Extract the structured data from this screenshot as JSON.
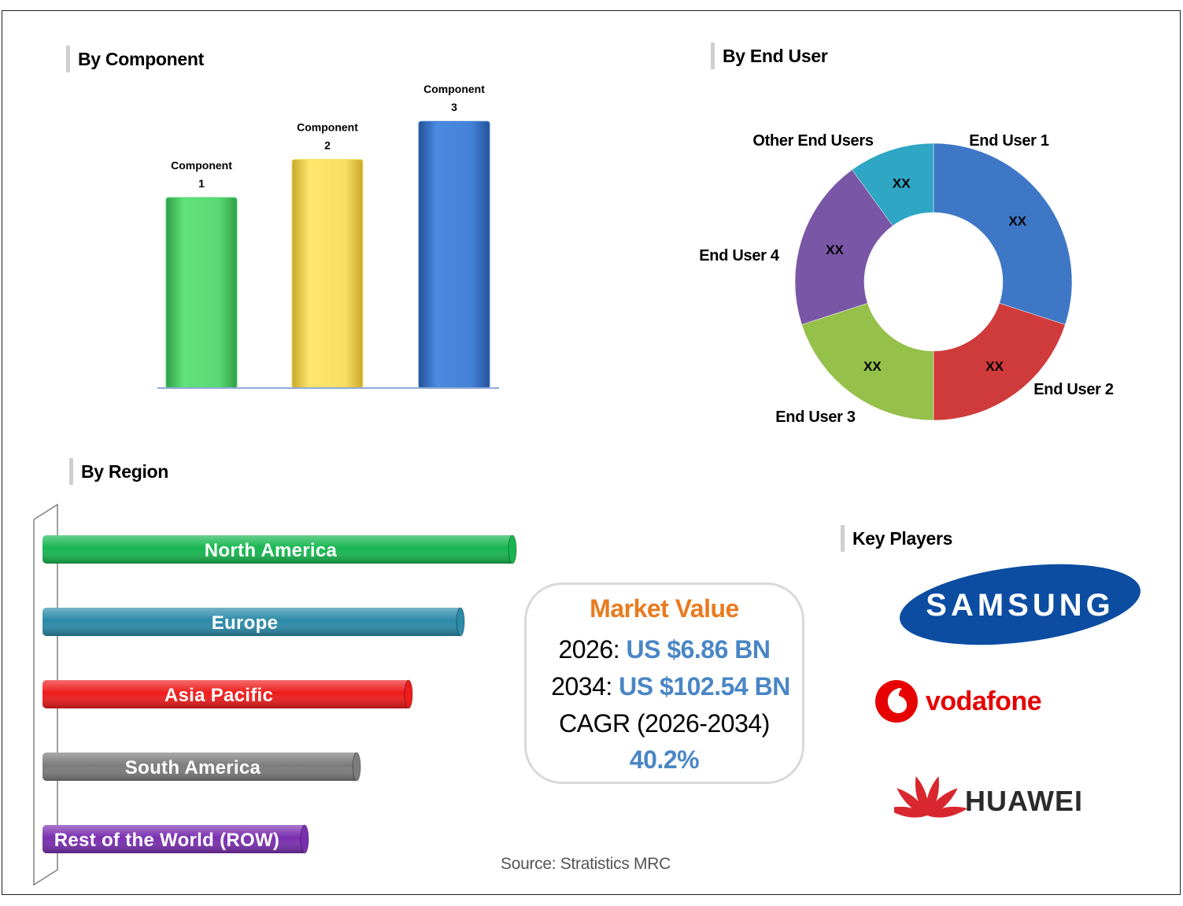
{
  "sections": {
    "component_title": "By Component",
    "end_user_title": "By End User",
    "region_title": "By Region",
    "key_players_title": "Key Players"
  },
  "chart_data": [
    {
      "type": "bar",
      "id": "by-component",
      "categories": [
        "Component 1",
        "Component 2",
        "Component 3"
      ],
      "category_lines": [
        [
          "Component",
          "1"
        ],
        [
          "Component",
          "2"
        ],
        [
          "Component",
          "3"
        ]
      ],
      "values": [
        5,
        6,
        7
      ],
      "colors": [
        "#4fd46a",
        "#f5dc58",
        "#3d79cf"
      ],
      "ylim": [
        0,
        7.5
      ]
    },
    {
      "type": "pie",
      "id": "by-end-user",
      "donut": true,
      "labels": [
        "End User 1",
        "End User 2",
        "End User 3",
        "End User 4",
        "Other End Users"
      ],
      "values": [
        30,
        20,
        20,
        20,
        10
      ],
      "value_labels": [
        "XX",
        "XX",
        "XX",
        "XX",
        "XX"
      ],
      "colors": [
        "#3e77c6",
        "#cf3a3a",
        "#95c04a",
        "#7a57a6",
        "#2ea6c4"
      ]
    },
    {
      "type": "bar",
      "orientation": "horizontal",
      "id": "by-region",
      "categories": [
        "North America",
        "Europe",
        "Asia Pacific",
        "South America",
        "Rest of the World (ROW)"
      ],
      "values": [
        100,
        89,
        78,
        67,
        56
      ],
      "colors": [
        "#17b650",
        "#2b8aa8",
        "#ee1c1c",
        "#7c7c7c",
        "#7a2fb0"
      ]
    }
  ],
  "market_value": {
    "title": "Market Value",
    "line1_prefix": "2026:",
    "line1_value": "US $6.86 BN",
    "line2_prefix": "2034:",
    "line2_value": "US $102.54 BN",
    "cagr_label": "CAGR (2026-2034)",
    "cagr_value": "40.2%"
  },
  "key_players": {
    "samsung": "SAMSUNG",
    "vodafone": "vodafone",
    "huawei": "HUAWEI"
  },
  "brand_colors": {
    "samsung_blue": "#0c4da2",
    "vodafone_red": "#e60000",
    "huawei_red": "#d8272f"
  },
  "source": "Source: Stratistics MRC"
}
